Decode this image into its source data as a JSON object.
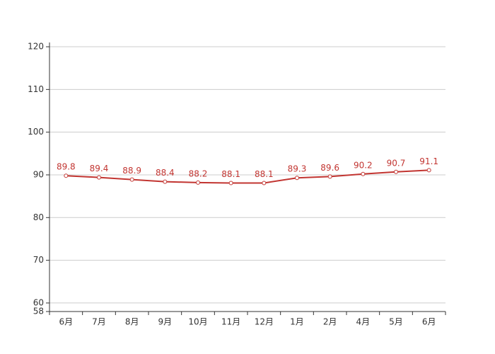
{
  "chart_data": {
    "type": "line",
    "categories": [
      "6月",
      "7月",
      "8月",
      "9月",
      "10月",
      "11月",
      "12月",
      "1月",
      "2月",
      "4月",
      "5月",
      "6月"
    ],
    "series": [
      {
        "color": "#c23531",
        "values": [
          89.8,
          89.4,
          88.9,
          88.4,
          88.2,
          88.1,
          88.1,
          89.3,
          89.6,
          90.2,
          90.7,
          91.1
        ]
      }
    ],
    "ylim": [
      58,
      121
    ],
    "yticks": [
      58,
      60,
      70,
      80,
      90,
      100,
      110,
      120
    ],
    "grid": true
  }
}
